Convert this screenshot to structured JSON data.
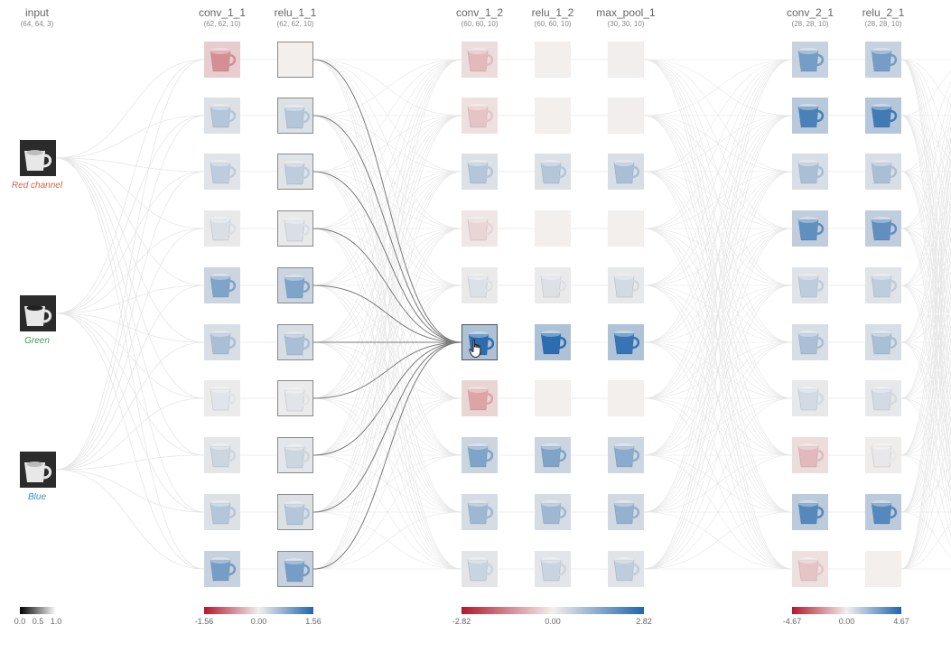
{
  "layers": [
    {
      "name": "input",
      "dims": "(64, 64, 3)"
    },
    {
      "name": "conv_1_1",
      "dims": "(62, 62, 10)"
    },
    {
      "name": "relu_1_1",
      "dims": "(62, 62, 10)"
    },
    {
      "name": "conv_1_2",
      "dims": "(60, 60, 10)"
    },
    {
      "name": "relu_1_2",
      "dims": "(60, 60, 10)"
    },
    {
      "name": "max_pool_1",
      "dims": "(30, 30, 10)"
    },
    {
      "name": "conv_2_1",
      "dims": "(28, 28, 10)"
    },
    {
      "name": "relu_2_1",
      "dims": "(28, 28, 10)"
    }
  ],
  "input_channels": [
    {
      "label": "Red channel",
      "color": "#d0654e"
    },
    {
      "label": "Green",
      "color": "#3aa05c"
    },
    {
      "label": "Blue",
      "color": "#3b8fc2"
    }
  ],
  "colorbars": [
    {
      "min": "0.0",
      "mid": "0.5",
      "max": "1.0"
    },
    {
      "min": "-1.56",
      "mid": "0.00",
      "max": "1.56"
    },
    {
      "min": "-2.82",
      "mid": "0.00",
      "max": "2.82"
    },
    {
      "min": "-4.67",
      "mid": "0.00",
      "max": "4.67"
    }
  ],
  "activations": {
    "conv_1_1": [
      -0.45,
      0.3,
      0.25,
      0.12,
      0.55,
      0.35,
      0.08,
      0.18,
      0.3,
      0.6
    ],
    "relu_1_1": [
      0.0,
      0.3,
      0.25,
      0.12,
      0.55,
      0.35,
      0.08,
      0.18,
      0.3,
      0.6
    ],
    "conv_1_2": [
      -0.25,
      -0.2,
      0.3,
      -0.12,
      0.1,
      0.95,
      -0.35,
      0.55,
      0.4,
      0.2
    ],
    "relu_1_2": [
      0.0,
      0.0,
      0.3,
      0.0,
      0.1,
      0.95,
      0.0,
      0.55,
      0.4,
      0.2
    ],
    "max_pool_1": [
      0.02,
      0.02,
      0.35,
      0.0,
      0.15,
      0.9,
      0.0,
      0.5,
      0.45,
      0.25
    ],
    "conv_2_1": [
      0.6,
      0.8,
      0.35,
      0.7,
      0.25,
      0.35,
      0.15,
      -0.25,
      0.75,
      -0.2
    ],
    "relu_2_1": [
      0.6,
      0.85,
      0.35,
      0.7,
      0.25,
      0.35,
      0.15,
      0.05,
      0.75,
      0.0
    ]
  },
  "colors": {
    "negative": "#b2182b",
    "positive": "#2166ac",
    "neutral": "#f2efed"
  }
}
